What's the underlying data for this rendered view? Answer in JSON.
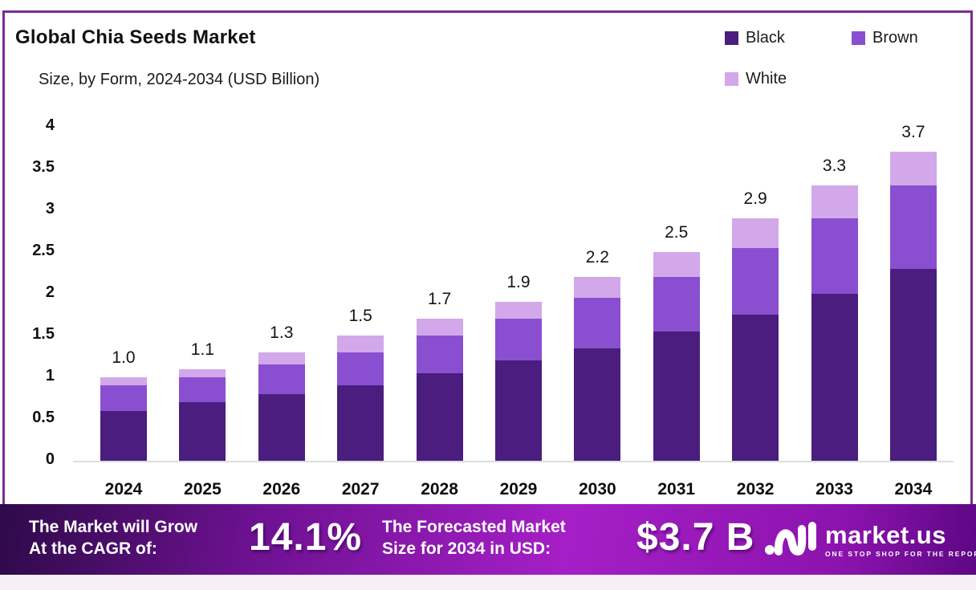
{
  "header": {
    "title": "Global Chia Seeds Market",
    "subtitle": "Size, by Form, 2024-2034 (USD Billion)"
  },
  "legend": [
    {
      "label": "Black",
      "color": "#4a1d7e"
    },
    {
      "label": "Brown",
      "color": "#8a4fd0"
    },
    {
      "label": "White",
      "color": "#d2a8ea"
    }
  ],
  "chart_data": {
    "type": "bar",
    "stacked": true,
    "title": "Global Chia Seeds Market Size, by Form, 2024-2034 (USD Billion)",
    "categories": [
      "2024",
      "2025",
      "2026",
      "2027",
      "2028",
      "2029",
      "2030",
      "2031",
      "2032",
      "2033",
      "2034"
    ],
    "series": [
      {
        "name": "Black",
        "color": "#4a1d7e",
        "values": [
          0.6,
          0.7,
          0.8,
          0.9,
          1.05,
          1.2,
          1.35,
          1.55,
          1.75,
          2.0,
          2.3
        ]
      },
      {
        "name": "Brown",
        "color": "#8a4fd0",
        "values": [
          0.3,
          0.3,
          0.35,
          0.4,
          0.45,
          0.5,
          0.6,
          0.65,
          0.8,
          0.9,
          1.0
        ]
      },
      {
        "name": "White",
        "color": "#d2a8ea",
        "values": [
          0.1,
          0.1,
          0.15,
          0.2,
          0.2,
          0.2,
          0.25,
          0.3,
          0.35,
          0.4,
          0.4
        ]
      }
    ],
    "totals": [
      1.0,
      1.1,
      1.3,
      1.5,
      1.7,
      1.9,
      2.2,
      2.5,
      2.9,
      3.3,
      3.7
    ],
    "total_labels": [
      "1.0",
      "1.1",
      "1.3",
      "1.5",
      "1.7",
      "1.9",
      "2.2",
      "2.5",
      "2.9",
      "3.3",
      "3.7"
    ],
    "ytick_labels": [
      "4",
      "3.5",
      "3",
      "2.5",
      "2",
      "1.5",
      "1",
      "0.5",
      "0"
    ],
    "ylim": [
      0,
      4
    ],
    "xlabel": "",
    "ylabel": "USD Billion",
    "grid": false,
    "legend_position": "top-right"
  },
  "banner": {
    "cagr_label_line1": "The Market will Grow",
    "cagr_label_line2": "At the CAGR of:",
    "cagr_value": "14.1%",
    "forecast_label_line1": "The Forecasted Market",
    "forecast_label_line2": "Size for 2034 in USD:",
    "forecast_value": "$3.7 B",
    "brand": "market.us",
    "brand_tagline": "ONE STOP SHOP FOR THE REPORTS"
  },
  "colors": {
    "frame_border": "#7c2c90",
    "axis_line": "#dcdcdc",
    "banner_gradient_start": "#2e0a49",
    "banner_gradient_mid": "#a51fc6",
    "banner_gradient_end": "#5d0784"
  }
}
